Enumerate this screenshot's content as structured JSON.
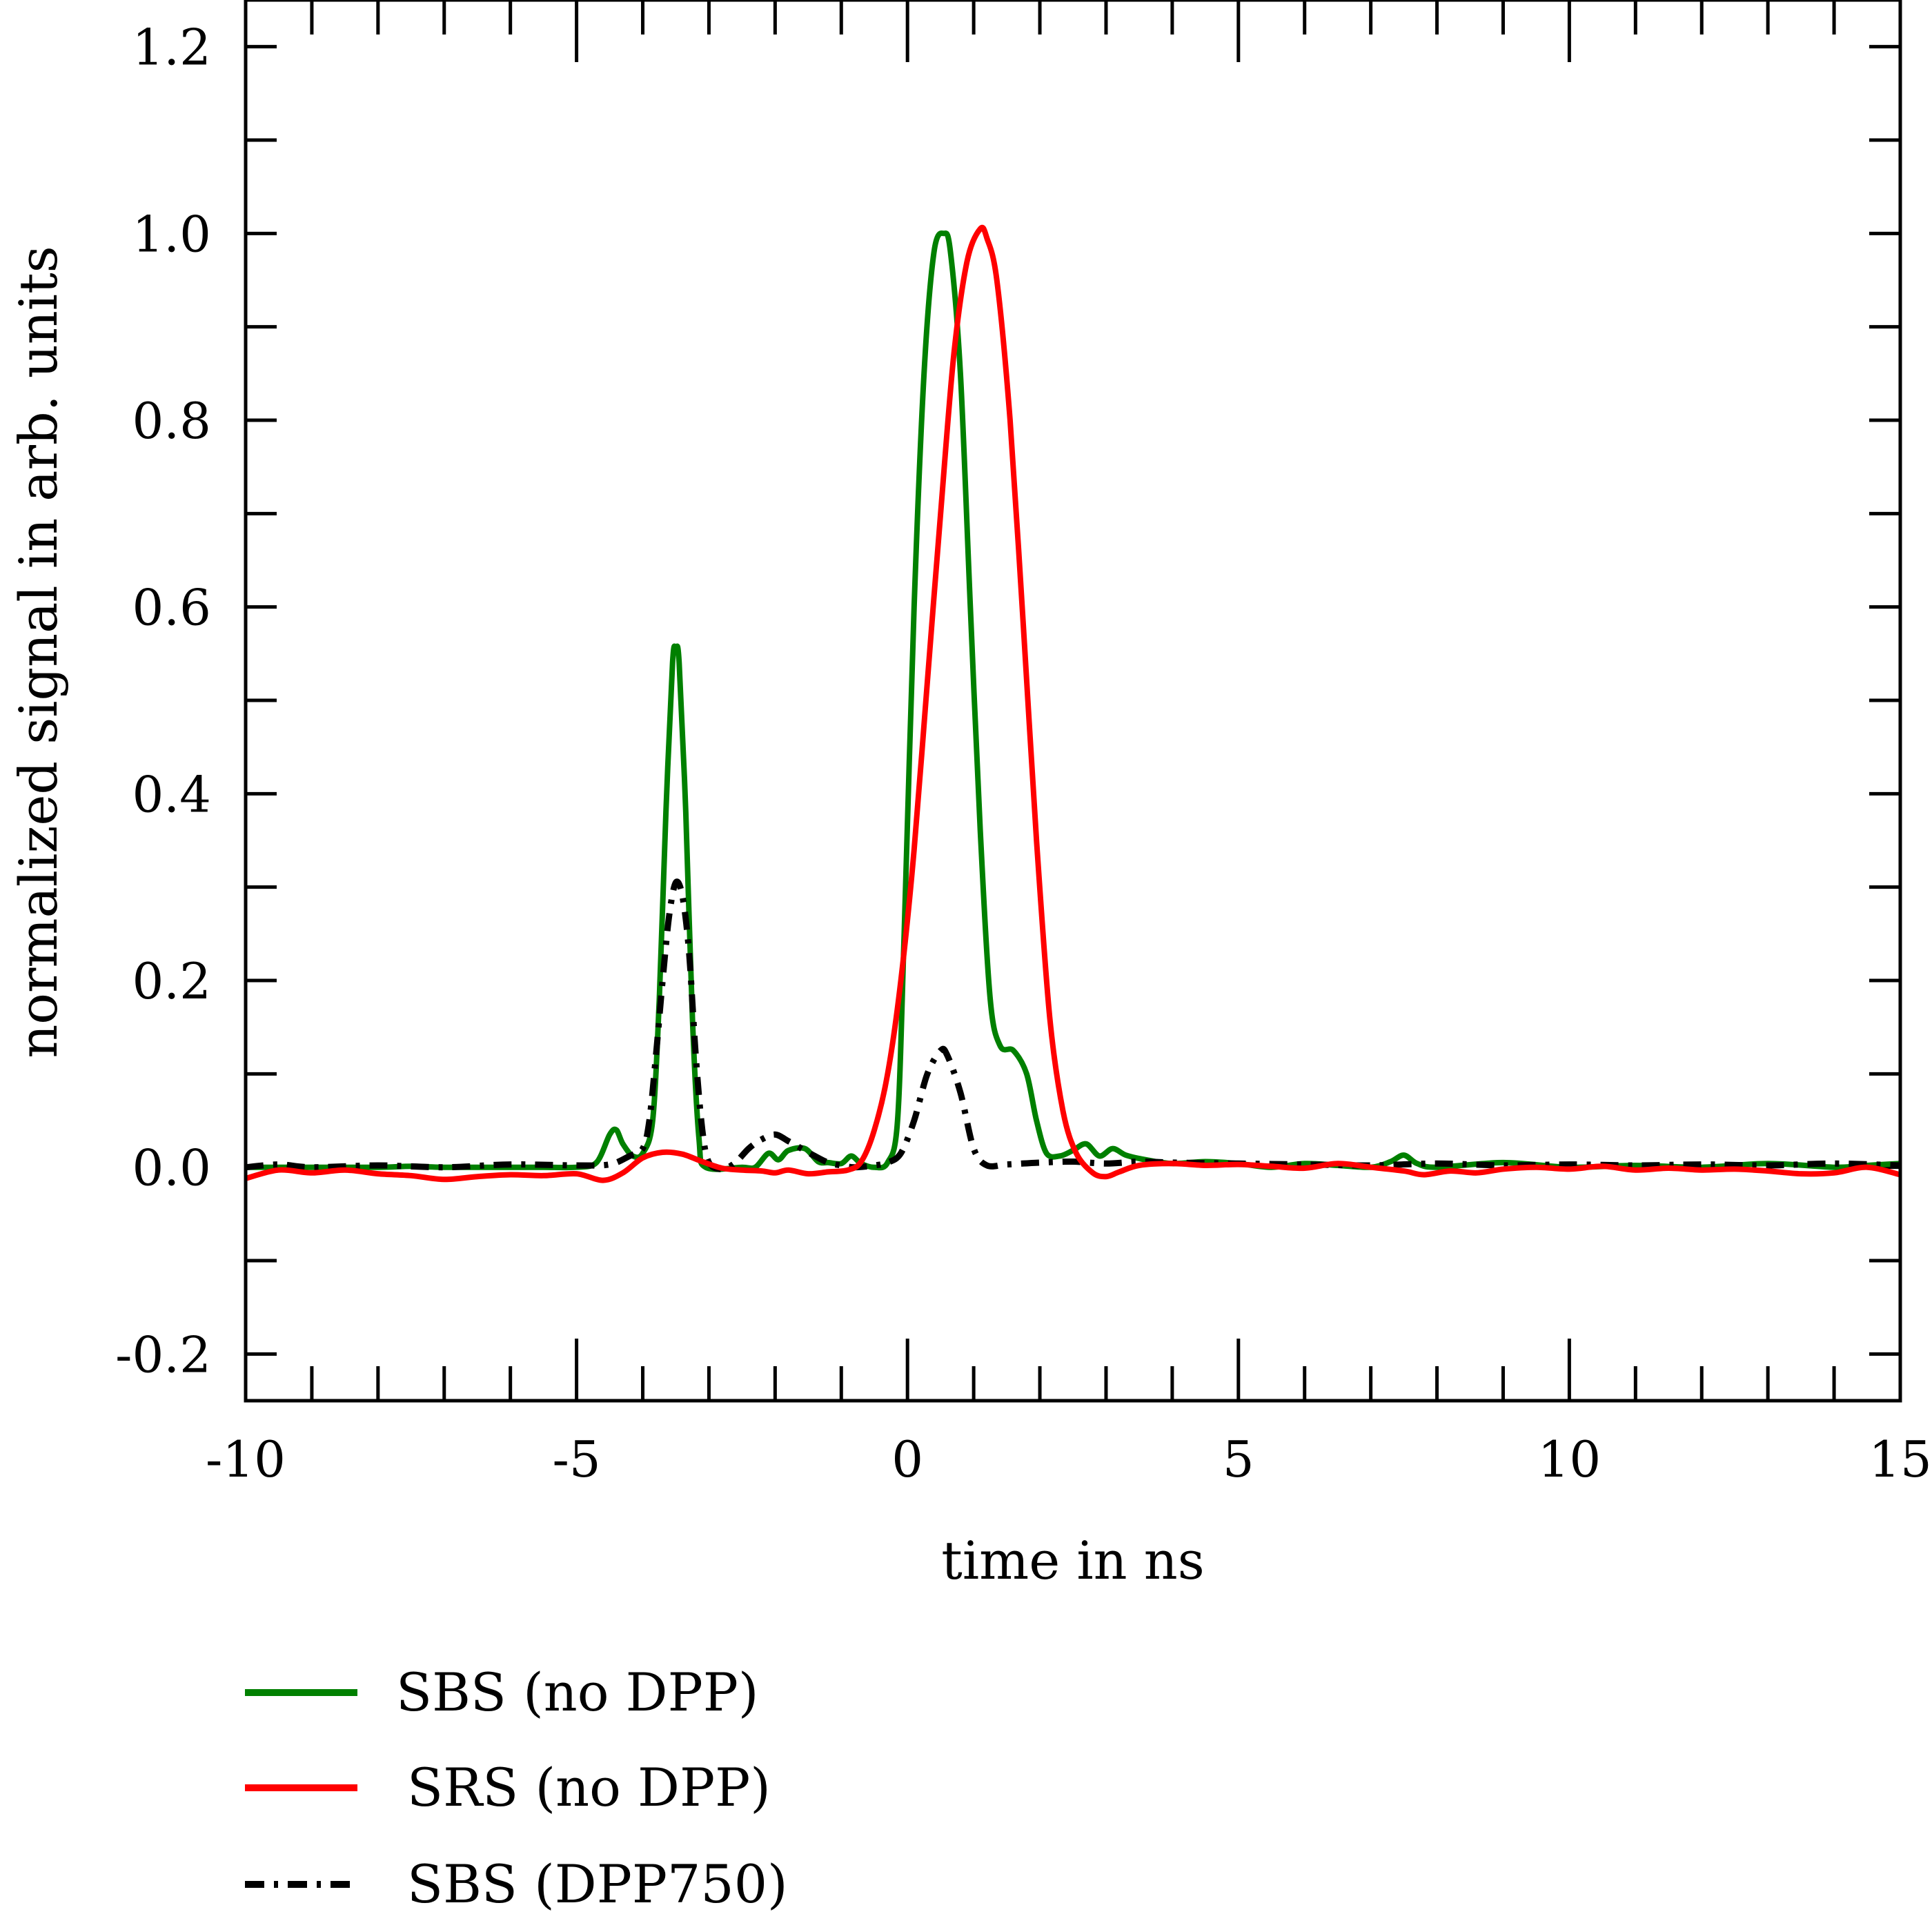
{
  "chart_data": {
    "type": "line",
    "title": "",
    "xlabel": "time in ns",
    "ylabel": "normalized signal in arb. units",
    "xlim": [
      -10,
      15
    ],
    "ylim": [
      -0.25,
      1.25
    ],
    "xticks": [
      -10,
      -5,
      0,
      5,
      10,
      15
    ],
    "xtick_labels": [
      "-10",
      "-5",
      "0",
      "5",
      "10",
      "15"
    ],
    "xminor_step": 1,
    "yticks": [
      -0.2,
      0.0,
      0.2,
      0.4,
      0.6,
      0.8,
      1.0,
      1.2
    ],
    "ytick_labels": [
      "-0.2",
      "0.0",
      "0.2",
      "0.4",
      "0.6",
      "0.8",
      "1.0",
      "1.2"
    ],
    "yminor_step": 0.1,
    "grid": false,
    "legend_position": "bottom-left, below plot",
    "series": [
      {
        "name": "SBS (no DPP)",
        "color": "#008000",
        "style": "solid",
        "points": [
          [
            -10,
            0.0
          ],
          [
            -9,
            0.0
          ],
          [
            -8,
            0.0
          ],
          [
            -7.5,
            0.001
          ],
          [
            -7,
            0.0
          ],
          [
            -6,
            0.0
          ],
          [
            -5.5,
            0.0
          ],
          [
            -5,
            0.0
          ],
          [
            -4.7,
            0.005
          ],
          [
            -4.5,
            0.035
          ],
          [
            -4.4,
            0.04
          ],
          [
            -4.3,
            0.025
          ],
          [
            -4.15,
            0.012
          ],
          [
            -4.0,
            0.015
          ],
          [
            -3.85,
            0.05
          ],
          [
            -3.75,
            0.18
          ],
          [
            -3.65,
            0.38
          ],
          [
            -3.55,
            0.54
          ],
          [
            -3.5,
            0.555
          ],
          [
            -3.45,
            0.54
          ],
          [
            -3.35,
            0.38
          ],
          [
            -3.25,
            0.16
          ],
          [
            -3.15,
            0.03
          ],
          [
            -3.05,
            0.0
          ],
          [
            -2.5,
            0.0
          ],
          [
            -2.3,
            0.0
          ],
          [
            -2.1,
            0.015
          ],
          [
            -1.95,
            0.008
          ],
          [
            -1.8,
            0.018
          ],
          [
            -1.55,
            0.02
          ],
          [
            -1.35,
            0.006
          ],
          [
            -1.2,
            0.005
          ],
          [
            -1.0,
            0.004
          ],
          [
            -0.85,
            0.012
          ],
          [
            -0.7,
            0.004
          ],
          [
            -0.5,
            0.0
          ],
          [
            -0.3,
            0.005
          ],
          [
            -0.15,
            0.05
          ],
          [
            -0.05,
            0.25
          ],
          [
            0.1,
            0.6
          ],
          [
            0.25,
            0.85
          ],
          [
            0.4,
            0.98
          ],
          [
            0.55,
            1.0
          ],
          [
            0.65,
            0.98
          ],
          [
            0.8,
            0.85
          ],
          [
            0.95,
            0.6
          ],
          [
            1.1,
            0.36
          ],
          [
            1.25,
            0.18
          ],
          [
            1.4,
            0.13
          ],
          [
            1.6,
            0.125
          ],
          [
            1.8,
            0.1
          ],
          [
            1.95,
            0.05
          ],
          [
            2.1,
            0.015
          ],
          [
            2.3,
            0.012
          ],
          [
            2.5,
            0.018
          ],
          [
            2.7,
            0.025
          ],
          [
            2.9,
            0.012
          ],
          [
            3.1,
            0.02
          ],
          [
            3.3,
            0.013
          ],
          [
            3.6,
            0.008
          ],
          [
            4.0,
            0.004
          ],
          [
            4.5,
            0.006
          ],
          [
            5.0,
            0.004
          ],
          [
            5.5,
            0.0
          ],
          [
            6.0,
            0.004
          ],
          [
            6.5,
            0.002
          ],
          [
            7.0,
            0.0
          ],
          [
            7.3,
            0.006
          ],
          [
            7.5,
            0.013
          ],
          [
            7.7,
            0.004
          ],
          [
            8.0,
            0.0
          ],
          [
            9.0,
            0.005
          ],
          [
            10.0,
            0.0
          ],
          [
            11.0,
            0.002
          ],
          [
            12.0,
            0.0
          ],
          [
            13.0,
            0.004
          ],
          [
            14.0,
            0.0
          ],
          [
            14.5,
            0.002
          ],
          [
            15.0,
            0.004
          ]
        ]
      },
      {
        "name": "SRS (no DPP)",
        "color": "#ff0000",
        "style": "solid",
        "points": [
          [
            -10,
            -0.012
          ],
          [
            -9.5,
            -0.003
          ],
          [
            -9,
            -0.006
          ],
          [
            -8.5,
            -0.003
          ],
          [
            -8,
            -0.007
          ],
          [
            -7.5,
            -0.009
          ],
          [
            -7,
            -0.013
          ],
          [
            -6.5,
            -0.01
          ],
          [
            -6,
            -0.008
          ],
          [
            -5.5,
            -0.009
          ],
          [
            -5,
            -0.007
          ],
          [
            -4.6,
            -0.014
          ],
          [
            -4.3,
            -0.006
          ],
          [
            -4.0,
            0.01
          ],
          [
            -3.7,
            0.016
          ],
          [
            -3.4,
            0.014
          ],
          [
            -3.1,
            0.006
          ],
          [
            -2.8,
            -0.001
          ],
          [
            -2.5,
            -0.003
          ],
          [
            -2.2,
            -0.004
          ],
          [
            -2.0,
            -0.006
          ],
          [
            -1.8,
            -0.003
          ],
          [
            -1.5,
            -0.007
          ],
          [
            -1.2,
            -0.005
          ],
          [
            -0.9,
            -0.003
          ],
          [
            -0.7,
            0.006
          ],
          [
            -0.5,
            0.04
          ],
          [
            -0.3,
            0.1
          ],
          [
            -0.1,
            0.2
          ],
          [
            0.1,
            0.34
          ],
          [
            0.3,
            0.52
          ],
          [
            0.5,
            0.7
          ],
          [
            0.7,
            0.87
          ],
          [
            0.9,
            0.97
          ],
          [
            1.1,
            1.005
          ],
          [
            1.2,
            0.995
          ],
          [
            1.35,
            0.95
          ],
          [
            1.55,
            0.8
          ],
          [
            1.75,
            0.58
          ],
          [
            1.95,
            0.35
          ],
          [
            2.15,
            0.16
          ],
          [
            2.35,
            0.06
          ],
          [
            2.55,
            0.015
          ],
          [
            2.8,
            -0.006
          ],
          [
            3.0,
            -0.01
          ],
          [
            3.2,
            -0.005
          ],
          [
            3.5,
            0.002
          ],
          [
            4.0,
            0.004
          ],
          [
            4.5,
            0.002
          ],
          [
            5.0,
            0.003
          ],
          [
            5.5,
            0.001
          ],
          [
            6.0,
            -0.001
          ],
          [
            6.5,
            0.004
          ],
          [
            7.0,
            0.0
          ],
          [
            7.5,
            -0.004
          ],
          [
            7.8,
            -0.008
          ],
          [
            8.2,
            -0.004
          ],
          [
            8.6,
            -0.006
          ],
          [
            9.0,
            -0.002
          ],
          [
            9.5,
            0.0
          ],
          [
            10.0,
            -0.002
          ],
          [
            10.5,
            0.001
          ],
          [
            11.0,
            -0.003
          ],
          [
            11.5,
            -0.001
          ],
          [
            12.0,
            -0.003
          ],
          [
            12.5,
            -0.002
          ],
          [
            13.0,
            -0.004
          ],
          [
            13.5,
            -0.007
          ],
          [
            14.0,
            -0.006
          ],
          [
            14.5,
            0.0
          ],
          [
            15.0,
            -0.008
          ]
        ]
      },
      {
        "name": "SBS (DPP750)",
        "color": "#000000",
        "style": "dashdot",
        "points": [
          [
            -10,
            0.0
          ],
          [
            -9.5,
            0.003
          ],
          [
            -9,
            0.0
          ],
          [
            -8,
            0.002
          ],
          [
            -7,
            0.0
          ],
          [
            -6,
            0.003
          ],
          [
            -5,
            0.002
          ],
          [
            -4.5,
            0.003
          ],
          [
            -4.2,
            0.012
          ],
          [
            -4.0,
            0.02
          ],
          [
            -3.9,
            0.05
          ],
          [
            -3.8,
            0.12
          ],
          [
            -3.7,
            0.2
          ],
          [
            -3.6,
            0.27
          ],
          [
            -3.5,
            0.305
          ],
          [
            -3.4,
            0.29
          ],
          [
            -3.3,
            0.23
          ],
          [
            -3.2,
            0.12
          ],
          [
            -3.1,
            0.04
          ],
          [
            -3.0,
            0.005
          ],
          [
            -2.8,
            -0.002
          ],
          [
            -2.6,
            0.005
          ],
          [
            -2.4,
            0.02
          ],
          [
            -2.2,
            0.03
          ],
          [
            -2.0,
            0.035
          ],
          [
            -1.8,
            0.028
          ],
          [
            -1.6,
            0.02
          ],
          [
            -1.4,
            0.012
          ],
          [
            -1.2,
            0.005
          ],
          [
            -1.0,
            0.002
          ],
          [
            -0.8,
            0.0
          ],
          [
            -0.5,
            0.002
          ],
          [
            -0.3,
            0.005
          ],
          [
            -0.1,
            0.015
          ],
          [
            0.1,
            0.05
          ],
          [
            0.3,
            0.1
          ],
          [
            0.5,
            0.125
          ],
          [
            0.6,
            0.12
          ],
          [
            0.8,
            0.08
          ],
          [
            1.0,
            0.02
          ],
          [
            1.2,
            0.002
          ],
          [
            1.5,
            0.003
          ],
          [
            2.0,
            0.005
          ],
          [
            2.5,
            0.006
          ],
          [
            3.0,
            0.004
          ],
          [
            3.5,
            0.006
          ],
          [
            4.0,
            0.005
          ],
          [
            5.0,
            0.004
          ],
          [
            6.0,
            0.003
          ],
          [
            7.0,
            0.002
          ],
          [
            8.0,
            0.004
          ],
          [
            9.0,
            0.002
          ],
          [
            10.0,
            0.003
          ],
          [
            11.0,
            0.002
          ],
          [
            12.0,
            0.003
          ],
          [
            13.0,
            0.002
          ],
          [
            14.0,
            0.004
          ],
          [
            15.0,
            0.002
          ]
        ]
      }
    ]
  }
}
